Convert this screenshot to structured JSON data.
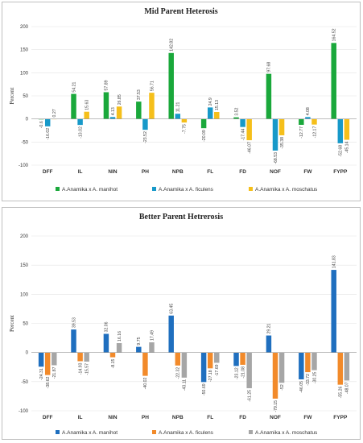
{
  "chart_data": [
    {
      "type": "bar",
      "title": "Mid Parent Heterosis",
      "ylabel": "Percent",
      "xlabel": "",
      "ylim": [
        -100,
        200
      ],
      "yticks": [
        "-100",
        "-50",
        "0",
        "50",
        "100",
        "150",
        "200"
      ],
      "grid": true,
      "legend_position": "bottom",
      "categories": [
        "DFF",
        "IL",
        "NIN",
        "PH",
        "NPB",
        "FL",
        "FD",
        "NOF",
        "FW",
        "FYPP"
      ],
      "series": [
        {
          "name": "A.Anamika x A. manihot",
          "color": "#1aa83b",
          "values": [
            -0.6,
            54.21,
            57.89,
            37.53,
            142.82,
            -20.09,
            3.52,
            97.68,
            -12.77,
            164.52
          ],
          "labels": [
            "-0.6",
            "54.21",
            "57.89",
            "37.53",
            "142.82",
            "-20.09",
            "3.52",
            "97.68",
            "-12.77",
            "164.52"
          ]
        },
        {
          "name": "A.Anamika x A. ficulens",
          "color": "#1799c9",
          "values": [
            -16.02,
            -13.02,
            4.13,
            -23.52,
            11.21,
            24.9,
            -17.44,
            -68.53,
            4.08,
            -52.68
          ],
          "labels": [
            "-16.02",
            "-13.02",
            "4.13",
            "-23.52",
            "11.21",
            "24.9",
            "-17.44",
            "-68.53",
            "4.08",
            "-52.68"
          ]
        },
        {
          "name": "A.Anamika x A. moschatus",
          "color": "#f5bf1a",
          "values": [
            0.27,
            15.63,
            26.85,
            56.71,
            -7.75,
            15.13,
            -46.07,
            -35.38,
            -12.17,
            -45.14
          ],
          "labels": [
            "0.27",
            "15.63",
            "26.85",
            "56.71",
            "-7.75",
            "15.13",
            "-46.07",
            "-35.38",
            "-12.17",
            "-45.14"
          ]
        }
      ]
    },
    {
      "type": "bar",
      "title": "Better Parent Hetrerosis",
      "ylabel": "Percent",
      "xlabel": "",
      "ylim": [
        -100,
        200
      ],
      "yticks": [
        "-100",
        "-50",
        "0",
        "50",
        "100",
        "150",
        "200"
      ],
      "grid": true,
      "legend_position": "bottom",
      "categories": [
        "DFF",
        "IL",
        "NIN",
        "PH",
        "NPB",
        "FL",
        "FD",
        "NOF",
        "FW",
        "FYPP"
      ],
      "series": [
        {
          "name": "A.Anamika x A. manihot",
          "color": "#1f6fbf",
          "values": [
            -24.31,
            39.53,
            32.06,
            9.75,
            63.45,
            -50.69,
            -23.12,
            29.21,
            -46.05,
            141.83
          ],
          "labels": [
            "-24.31",
            "39.53",
            "32.06",
            "9.75",
            "63.45",
            "-50.69",
            "-23.12",
            "29.21",
            "-46.05",
            "141.83"
          ]
        },
        {
          "name": "A.Anamika x A. ficulens",
          "color": "#f28a2a",
          "values": [
            -38.62,
            -14.93,
            -8.15,
            -40.02,
            -22.32,
            -27.18,
            -21.08,
            -79.15,
            -33.72,
            -55.26
          ],
          "labels": [
            "-38.62",
            "-14.93",
            "-8.15",
            "-40.02",
            "-22.32",
            "-27.18",
            "-21.08",
            "-79.15",
            "-33.72",
            "-55.26"
          ]
        },
        {
          "name": "A.Anamika x A. moschatus",
          "color": "#a6a6a6",
          "values": [
            -21.87,
            -15.57,
            16.16,
            17.49,
            -43.11,
            -17.69,
            -61.25,
            -52,
            -30.25,
            -48.07
          ],
          "labels": [
            "-21.87",
            "-15.57",
            "16.16",
            "17.49",
            "-43.11",
            "-17.69",
            "-61.25",
            "-52",
            "-30.25",
            "-48.07"
          ]
        }
      ]
    }
  ]
}
